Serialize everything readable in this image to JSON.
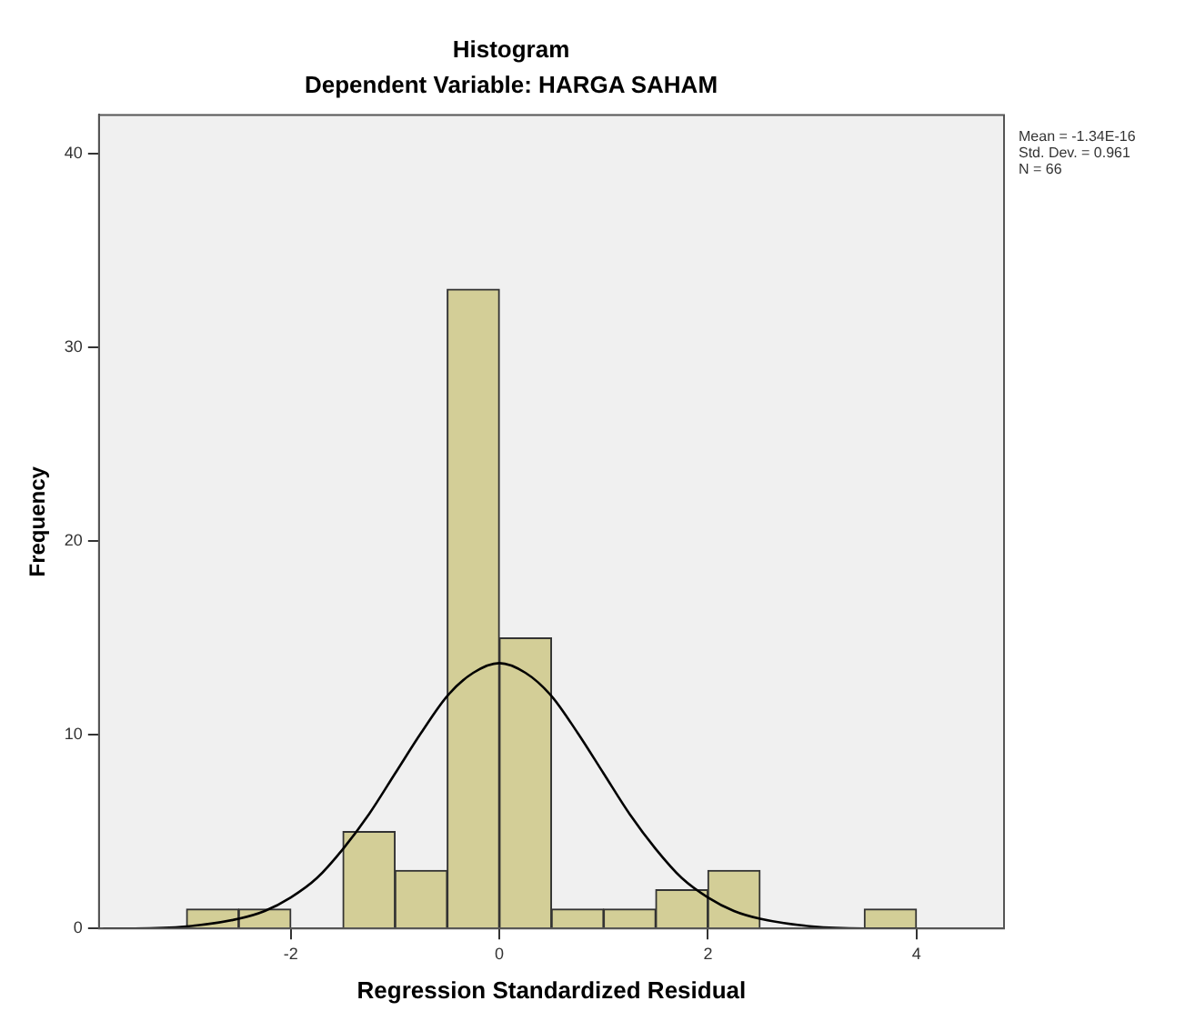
{
  "chart_data": {
    "type": "histogram",
    "title": "Histogram",
    "subtitle": "Dependent Variable: HARGA SAHAM",
    "xlabel": "Regression Standardized Residual",
    "ylabel": "Frequency",
    "bins": [
      -3,
      -2.5,
      -2,
      -1.5,
      -1,
      -0.5,
      0,
      0.5,
      1,
      1.5,
      2,
      2.5,
      3,
      3.5,
      4
    ],
    "values": [
      1,
      1,
      0,
      5,
      3,
      33,
      15,
      1,
      1,
      2,
      3,
      0,
      0,
      1
    ],
    "color": "#d3ce97",
    "series": [
      {
        "type": "line",
        "color": "#000000",
        "x": [
          -3.8,
          -3.5,
          -3,
          -2.5,
          -2.25,
          -2,
          -1.75,
          -1.5,
          -1.25,
          -1,
          -0.75,
          -0.5,
          -0.25,
          0,
          0.25,
          0.5,
          0.75,
          1,
          1.25,
          1.5,
          1.75,
          2,
          2.25,
          2.5,
          3,
          3.5,
          4
        ],
        "values": [
          0,
          0,
          0.1,
          0.5,
          0.9,
          1.6,
          2.6,
          4.1,
          5.9,
          8.0,
          10.1,
          12.0,
          13.2,
          13.7,
          13.2,
          12.0,
          10.1,
          8.0,
          5.9,
          4.1,
          2.6,
          1.6,
          0.9,
          0.5,
          0.1,
          0,
          0
        ]
      }
    ],
    "xlim": [
      -3.84,
      4.84
    ],
    "ylim": [
      0,
      42
    ],
    "xticks": [
      -2,
      0,
      2,
      4
    ],
    "yticks": [
      0,
      10,
      20,
      30,
      40
    ],
    "grid": false,
    "legend": false,
    "annotations": [
      "Mean = -1.34E-16",
      "Std. Dev. = 0.961",
      "N = 66"
    ]
  }
}
